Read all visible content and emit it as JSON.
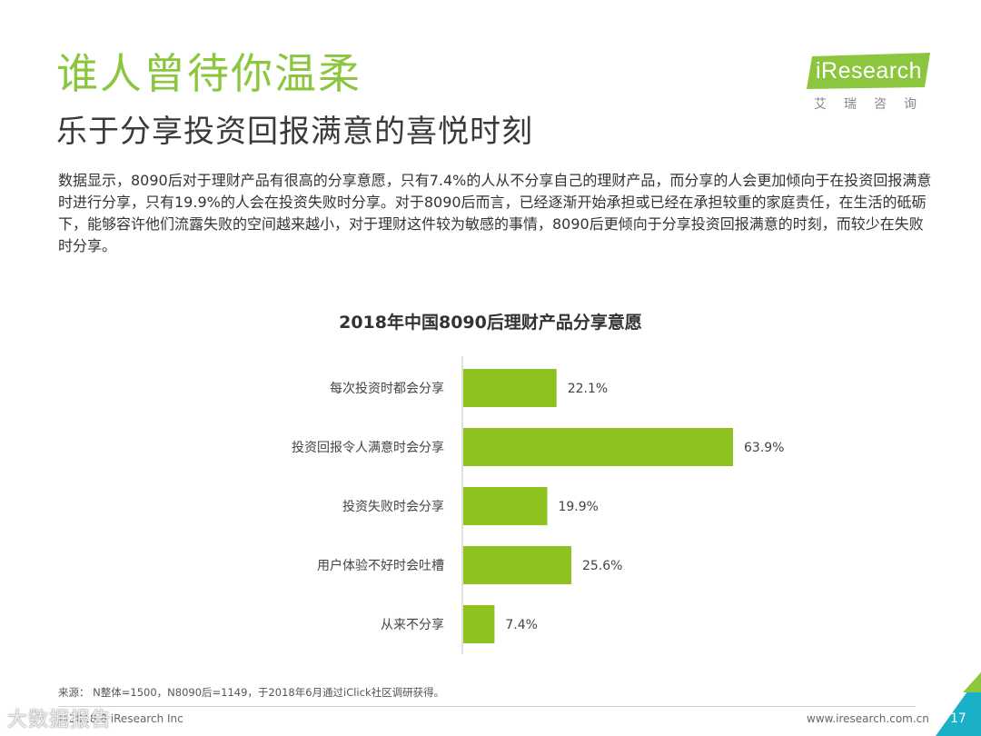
{
  "slide": {
    "title": "谁人曾待你温柔",
    "subtitle": "乐于分享投资回报满意的喜悦时刻",
    "description": "数据显示，8090后对于理财产品有很高的分享意愿，只有7.4%的人从不分享自己的理财产品，而分享的人会更加倾向于在投资回报满意时进行分享，只有19.9%的人会在投资失败时分享。对于8090后而言，已经逐渐开始承担或已经在承担较重的家庭责任，在生活的砥砺下，能够容许他们流露失败的空间越来越小，对于理财这件较为敏感的事情，8090后更倾向于分享投资回报满意的时刻，而较少在失败时分享。",
    "source": "来源： N整体=1500，N8090后=1149，于2018年6月通过iClick社区调研获得。",
    "footer_left": "©2018.8 iResearch Inc",
    "footer_right": "www.iresearch.com.cn",
    "page_number": "17",
    "watermark": "大数据报告"
  },
  "logo": {
    "text": "iResearch",
    "cn": "艾瑞咨询"
  },
  "colors": {
    "accent": "#8cc63f",
    "bar": "#8dc21f",
    "corner": "#1ab0c8"
  },
  "chart_data": {
    "type": "bar",
    "orientation": "horizontal",
    "title": "2018年中国8090后理财产品分享意愿",
    "categories": [
      "每次投资时都会分享",
      "投资回报令人满意时会分享",
      "投资失败时会分享",
      "用户体验不好时会吐槽",
      "从来不分享"
    ],
    "values": [
      22.1,
      63.9,
      19.9,
      25.6,
      7.4
    ],
    "value_labels": [
      "22.1%",
      "63.9%",
      "19.9%",
      "25.6%",
      "7.4%"
    ],
    "unit": "%",
    "xlim": [
      0,
      100
    ],
    "grid": false,
    "legend": "none"
  }
}
